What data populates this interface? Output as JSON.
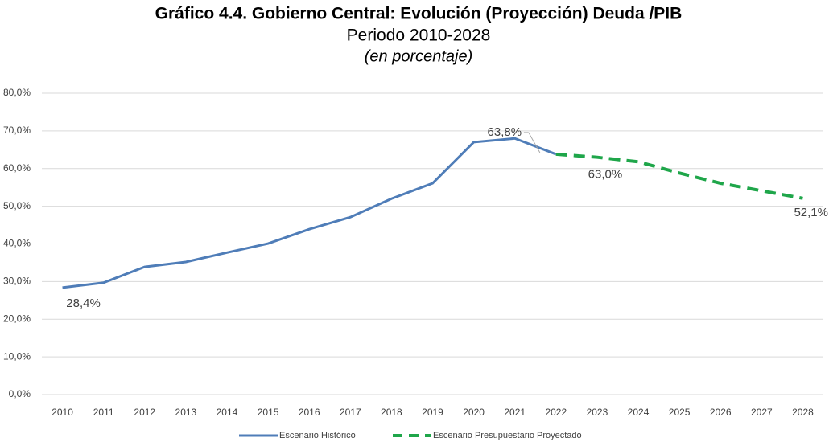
{
  "chart_data": {
    "type": "line",
    "title": "Gráfico 4.4. Gobierno Central: Evolución (Proyección) Deuda /PIB",
    "subtitle": "Periodo 2010-2028",
    "unit_note": "(en porcentaje)",
    "categories": [
      "2010",
      "2011",
      "2012",
      "2013",
      "2014",
      "2015",
      "2016",
      "2017",
      "2018",
      "2019",
      "2020",
      "2021",
      "2022",
      "2023",
      "2024",
      "2025",
      "2026",
      "2027",
      "2028"
    ],
    "series": [
      {
        "name": "Escenario Histórico",
        "color": "#4f7db8",
        "style": "solid",
        "values": [
          28.4,
          29.7,
          33.9,
          35.2,
          37.7,
          40.1,
          43.9,
          47.1,
          52.0,
          56.1,
          67.0,
          68.0,
          63.8,
          null,
          null,
          null,
          null,
          null,
          null
        ],
        "value_labels": [
          "28,4%",
          null,
          null,
          null,
          null,
          null,
          null,
          null,
          null,
          null,
          null,
          null,
          "63,8%",
          null,
          null,
          null,
          null,
          null,
          null
        ]
      },
      {
        "name": "Escenario Presupuestario Proyectado",
        "color": "#1fa64a",
        "style": "dashed",
        "values": [
          null,
          null,
          null,
          null,
          null,
          null,
          null,
          null,
          null,
          null,
          null,
          null,
          63.8,
          63.0,
          61.8,
          58.8,
          56.1,
          54.1,
          52.1
        ],
        "value_labels": [
          null,
          null,
          null,
          null,
          null,
          null,
          null,
          null,
          null,
          null,
          null,
          null,
          null,
          "63,0%",
          null,
          null,
          null,
          null,
          "52,1%"
        ]
      }
    ],
    "ylim": [
      0,
      80
    ],
    "yticks": [
      {
        "value": 0,
        "label": "0,0%"
      },
      {
        "value": 10,
        "label": "10,0%"
      },
      {
        "value": 20,
        "label": "20,0%"
      },
      {
        "value": 30,
        "label": "30,0%"
      },
      {
        "value": 40,
        "label": "40,0%"
      },
      {
        "value": 50,
        "label": "50,0%"
      },
      {
        "value": 60,
        "label": "60,0%"
      },
      {
        "value": 70,
        "label": "70,0%"
      },
      {
        "value": 80,
        "label": "80,0%"
      }
    ],
    "grid": true,
    "legend": "bottom"
  }
}
